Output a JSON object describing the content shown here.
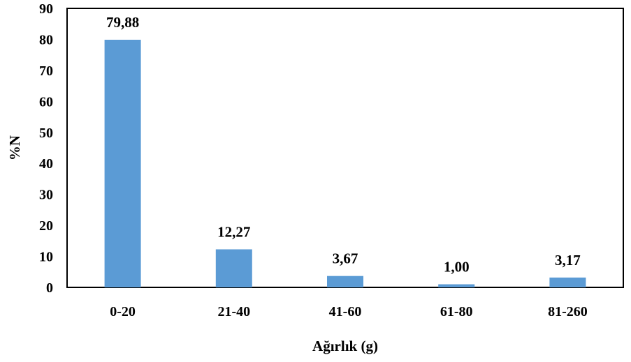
{
  "chart_data": {
    "type": "bar",
    "title": "",
    "xlabel": "Ağırlık (g)",
    "ylabel": "%N",
    "categories": [
      "0-20",
      "21-40",
      "41-60",
      "61-80",
      "81-260"
    ],
    "values": [
      79.88,
      12.27,
      3.67,
      1.0,
      3.17
    ],
    "data_labels": [
      "79,88",
      "12,27",
      "3,67",
      "1,00",
      "3,17"
    ],
    "ylim": [
      0,
      90
    ],
    "yticks": [
      0,
      10,
      20,
      30,
      40,
      50,
      60,
      70,
      80,
      90
    ],
    "grid": false,
    "legend": "none",
    "bar_color": "#5b9bd5"
  }
}
